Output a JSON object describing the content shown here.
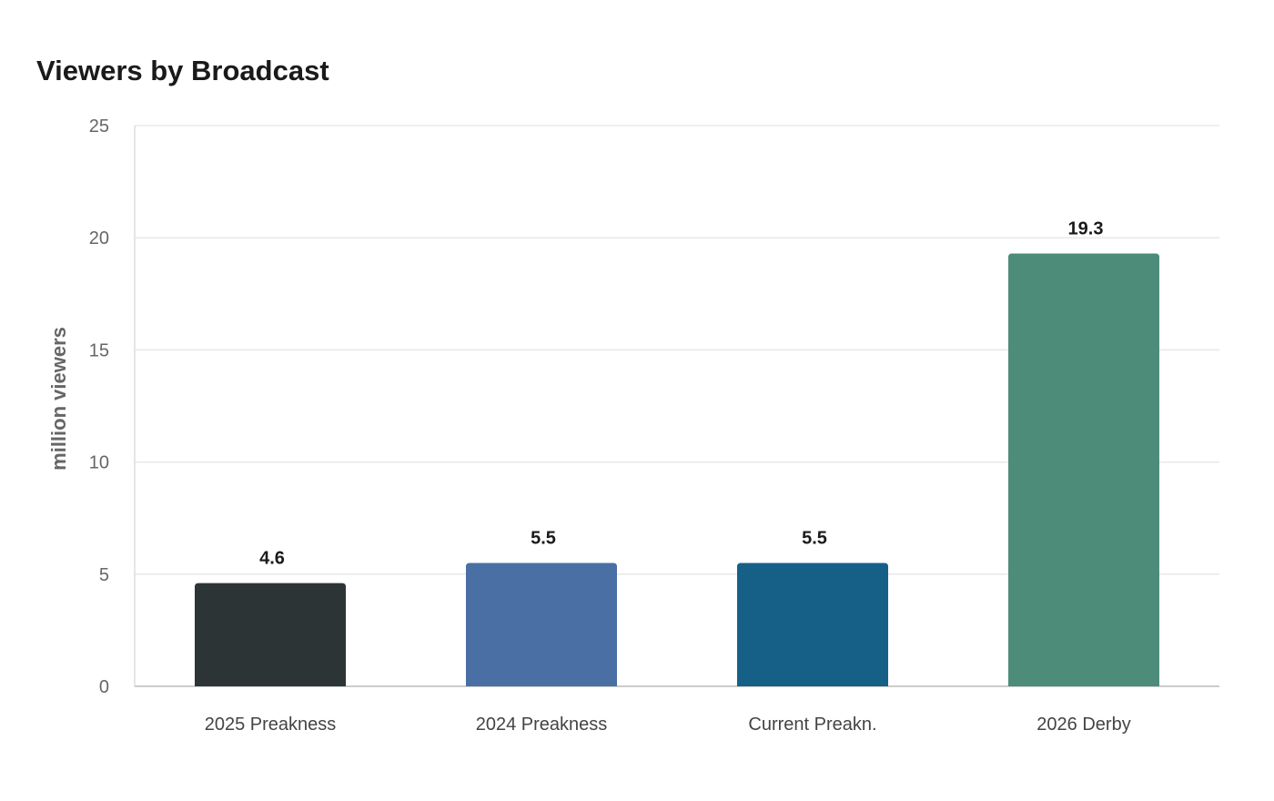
{
  "chart_data": {
    "type": "bar",
    "title": "Viewers by Broadcast",
    "xlabel": "",
    "ylabel": "million viewers",
    "categories": [
      "2025 Preakness",
      "2024 Preakness",
      "Current Preakn.",
      "2026 Derby"
    ],
    "values": [
      4.6,
      5.5,
      5.5,
      19.3
    ],
    "value_labels": [
      "4.6",
      "5.5",
      "5.5",
      "19.3"
    ],
    "colors": [
      "#2d3436",
      "#4a6fa5",
      "#166088",
      "#4e8c7a"
    ],
    "ylim": [
      0,
      25
    ],
    "yticks": [
      0,
      5,
      10,
      15,
      20,
      25
    ],
    "grid": true,
    "legend": "none"
  }
}
